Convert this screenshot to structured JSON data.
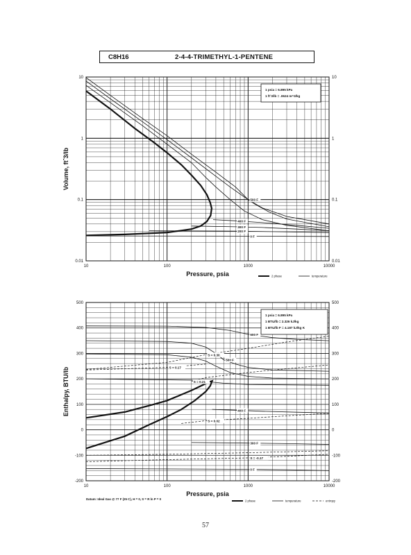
{
  "header": {
    "formula": "C8H16",
    "compound": "2-4-4-TRIMETHYL-1-PENTENE"
  },
  "page_number": "57",
  "footer_note": "Datum: Ideal Gas @ 77 F (25 C), H = 0, S = R ln P = 0",
  "chart_data": [
    {
      "type": "line",
      "xscale": "log",
      "yscale": "log",
      "xlabel": "Pressure, psia",
      "ylabel": "Volume, ft^3/lb",
      "xlim": [
        10,
        10000
      ],
      "ylim": [
        0.01,
        10
      ],
      "x_ticks": [
        "10",
        "100",
        "1000",
        "10000"
      ],
      "y_ticks": [
        "0.01",
        "0.1",
        "1",
        "10"
      ],
      "grid": true,
      "notes": [
        "1 psia = 6.895 kPa",
        "1 ft^3/lb = .0624 m^3/kg"
      ],
      "legend": [
        "2 phase",
        "temperature"
      ],
      "series": [
        {
          "kind": "2 phase",
          "points": [
            [
              10,
              5.9
            ],
            [
              20,
              3.0
            ],
            [
              40,
              1.45
            ],
            [
              70,
              0.84
            ],
            [
              100,
              0.58
            ],
            [
              150,
              0.37
            ],
            [
              200,
              0.25
            ],
            [
              260,
              0.17
            ],
            [
              310,
              0.12
            ],
            [
              340,
              0.09
            ],
            [
              355,
              0.072
            ],
            [
              345,
              0.055
            ],
            [
              310,
              0.044
            ],
            [
              260,
              0.037
            ],
            [
              200,
              0.033
            ],
            [
              100,
              0.029
            ],
            [
              30,
              0.027
            ],
            [
              10,
              0.026
            ]
          ]
        },
        {
          "kind": "temperature",
          "points": [
            [
              10,
              7.3
            ],
            [
              20,
              3.8
            ],
            [
              50,
              1.6
            ],
            [
              100,
              0.8
            ],
            [
              200,
              0.4
            ],
            [
              300,
              0.23
            ],
            [
              400,
              0.16
            ],
            [
              600,
              0.1
            ],
            [
              900,
              0.065
            ],
            [
              1500,
              0.047
            ],
            [
              3000,
              0.038
            ],
            [
              10000,
              0.031
            ]
          ]
        },
        {
          "kind": "temperature",
          "points": [
            [
              10,
              8.6
            ],
            [
              20,
              4.4
            ],
            [
              50,
              1.85
            ],
            [
              100,
              0.95
            ],
            [
              200,
              0.48
            ],
            [
              400,
              0.24
            ],
            [
              600,
              0.16
            ],
            [
              900,
              0.11
            ],
            [
              1200,
              0.085
            ],
            [
              1800,
              0.063
            ],
            [
              3000,
              0.048
            ],
            [
              10000,
              0.036
            ]
          ]
        },
        {
          "label": "500 F",
          "kind": "temperature",
          "points": [
            [
              10,
              9.8
            ],
            [
              20,
              5.0
            ],
            [
              50,
              2.1
            ],
            [
              100,
              1.1
            ],
            [
              200,
              0.55
            ],
            [
              400,
              0.28
            ],
            [
              700,
              0.16
            ],
            [
              1000,
              0.1
            ],
            [
              1500,
              0.073
            ],
            [
              3000,
              0.053
            ],
            [
              10000,
              0.04
            ]
          ]
        },
        {
          "label": "400 F",
          "kind": "temperature",
          "points": [
            [
              370,
              0.047
            ],
            [
              700,
              0.045
            ],
            [
              1500,
              0.042
            ],
            [
              4000,
              0.038
            ],
            [
              10000,
              0.034
            ]
          ]
        },
        {
          "label": "300 F",
          "kind": "temperature",
          "points": [
            [
              200,
              0.037
            ],
            [
              700,
              0.036
            ],
            [
              1500,
              0.035
            ],
            [
              4000,
              0.033
            ],
            [
              10000,
              0.031
            ]
          ]
        },
        {
          "label": "200 F",
          "kind": "temperature",
          "points": [
            [
              60,
              0.031
            ],
            [
              700,
              0.0305
            ],
            [
              2000,
              0.03
            ],
            [
              10000,
              0.029
            ]
          ]
        },
        {
          "label": "0 F",
          "kind": "temperature",
          "points": [
            [
              10,
              0.0255
            ],
            [
              1000,
              0.0253
            ],
            [
              10000,
              0.025
            ]
          ]
        }
      ]
    },
    {
      "type": "line",
      "xscale": "log",
      "yscale": "linear",
      "xlabel": "Pressure, psia",
      "ylabel": "Enthalpy, BTU/lb",
      "xlim": [
        10,
        10000
      ],
      "ylim": [
        -200,
        500
      ],
      "x_ticks": [
        "10",
        "100",
        "1000",
        "10000"
      ],
      "y_ticks": [
        "-200",
        "-100",
        "0",
        "100",
        "200",
        "300",
        "400",
        "500"
      ],
      "grid": true,
      "notes": [
        "1 psia = 6.895 kPa",
        "1 BTU/lb = 2.326 kJ/kg",
        "1 BTU/lb F = 4.187 kJ/kg K"
      ],
      "legend": [
        "2 phase",
        "temperature",
        "entropy"
      ],
      "series": [
        {
          "kind": "2 phase",
          "points": [
            [
              10,
              47
            ],
            [
              30,
              70
            ],
            [
              60,
              95
            ],
            [
              100,
              115
            ],
            [
              150,
              138
            ],
            [
              200,
              155
            ],
            [
              280,
              177
            ],
            [
              330,
              188
            ],
            [
              360,
              192
            ],
            [
              340,
              172
            ],
            [
              300,
              150
            ],
            [
              220,
              115
            ],
            [
              150,
              80
            ],
            [
              100,
              52
            ],
            [
              60,
              20
            ],
            [
              30,
              -25
            ],
            [
              10,
              -73
            ]
          ]
        },
        {
          "label": "600 F",
          "kind": "temperature",
          "points": [
            [
              10,
              408
            ],
            [
              100,
              407
            ],
            [
              300,
              402
            ],
            [
              600,
              390
            ],
            [
              1000,
              375
            ],
            [
              2000,
              362
            ],
            [
              4000,
              355
            ],
            [
              10000,
              350
            ]
          ]
        },
        {
          "label": "500 F",
          "kind": "temperature",
          "points": [
            [
              10,
              350
            ],
            [
              100,
              347
            ],
            [
              200,
              340
            ],
            [
              300,
              325
            ],
            [
              400,
              300
            ],
            [
              500,
              275
            ],
            [
              700,
              258
            ],
            [
              1000,
              245
            ],
            [
              2000,
              235
            ],
            [
              10000,
              230
            ]
          ]
        },
        {
          "kind": "temperature",
          "points": [
            [
              10,
              298
            ],
            [
              100,
              295
            ],
            [
              200,
              285
            ],
            [
              300,
              270
            ],
            [
              400,
              250
            ],
            [
              600,
              225
            ],
            [
              1000,
              210
            ],
            [
              2000,
              203
            ],
            [
              10000,
              200
            ]
          ]
        },
        {
          "kind": "temperature",
          "points": [
            [
              10,
              200
            ],
            [
              200,
              195
            ],
            [
              500,
              183
            ],
            [
              1000,
              178
            ],
            [
              10000,
              175
            ]
          ]
        },
        {
          "label": "400 F",
          "kind": "temperature",
          "points": [
            [
              360,
              80
            ],
            [
              700,
              77
            ],
            [
              1500,
              73
            ],
            [
              4000,
              69
            ],
            [
              10000,
              66
            ]
          ]
        },
        {
          "label": "300 F",
          "kind": "temperature",
          "points": [
            [
              200,
              -50
            ],
            [
              1000,
              -52
            ],
            [
              3000,
              -54
            ],
            [
              10000,
              -57
            ]
          ]
        },
        {
          "label": "0 F",
          "kind": "temperature",
          "points": [
            [
              10,
              -152
            ],
            [
              1000,
              -155
            ],
            [
              3000,
              -157
            ],
            [
              10000,
              -160
            ]
          ]
        },
        {
          "label": "S = 0.30",
          "kind": "entropy",
          "points": [
            [
              10,
              237
            ],
            [
              100,
              265
            ],
            [
              300,
              295
            ],
            [
              1000,
              320
            ],
            [
              3000,
              345
            ],
            [
              10000,
              368
            ]
          ]
        },
        {
          "label": "S = 0.21",
          "kind": "entropy",
          "points": [
            [
              200,
              190
            ],
            [
              300,
              205
            ],
            [
              1000,
              225
            ],
            [
              3000,
              240
            ],
            [
              10000,
              255
            ]
          ]
        },
        {
          "label": "S = 0.17",
          "kind": "entropy",
          "points": [
            [
              10,
              235
            ],
            [
              100,
              245
            ],
            [
              300,
              258
            ]
          ]
        },
        {
          "label": "S = 0.02",
          "kind": "entropy",
          "points": [
            [
              150,
              25
            ],
            [
              300,
              36
            ],
            [
              1000,
              45
            ],
            [
              3000,
              55
            ],
            [
              10000,
              65
            ]
          ]
        },
        {
          "label": "S = -0.17",
          "kind": "entropy",
          "points": [
            [
              10,
              -125
            ],
            [
              100,
              -117
            ],
            [
              1000,
              -110
            ],
            [
              3000,
              -104
            ],
            [
              10000,
              -96
            ]
          ]
        },
        {
          "kind": "entropy",
          "points": [
            [
              10,
              -100
            ],
            [
              100,
              -96
            ],
            [
              1000,
              -90
            ],
            [
              10000,
              -82
            ]
          ]
        }
      ]
    }
  ]
}
